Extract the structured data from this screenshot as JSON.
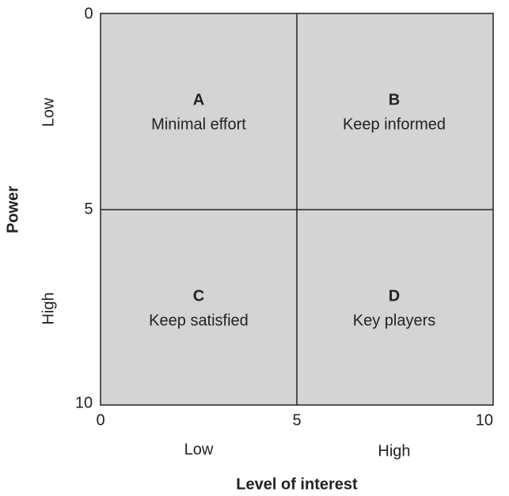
{
  "axes": {
    "y_title": "Power",
    "x_title": "Level of interest",
    "y_ticks": [
      0,
      5,
      10
    ],
    "x_ticks": [
      0,
      5,
      10
    ],
    "y_levels": [
      "Low",
      "High"
    ],
    "x_levels": [
      "Low",
      "High"
    ]
  },
  "quadrants": [
    {
      "letter": "A",
      "label": "Minimal effort"
    },
    {
      "letter": "B",
      "label": "Keep informed"
    },
    {
      "letter": "C",
      "label": "Keep satisfied"
    },
    {
      "letter": "D",
      "label": "Key players"
    }
  ]
}
